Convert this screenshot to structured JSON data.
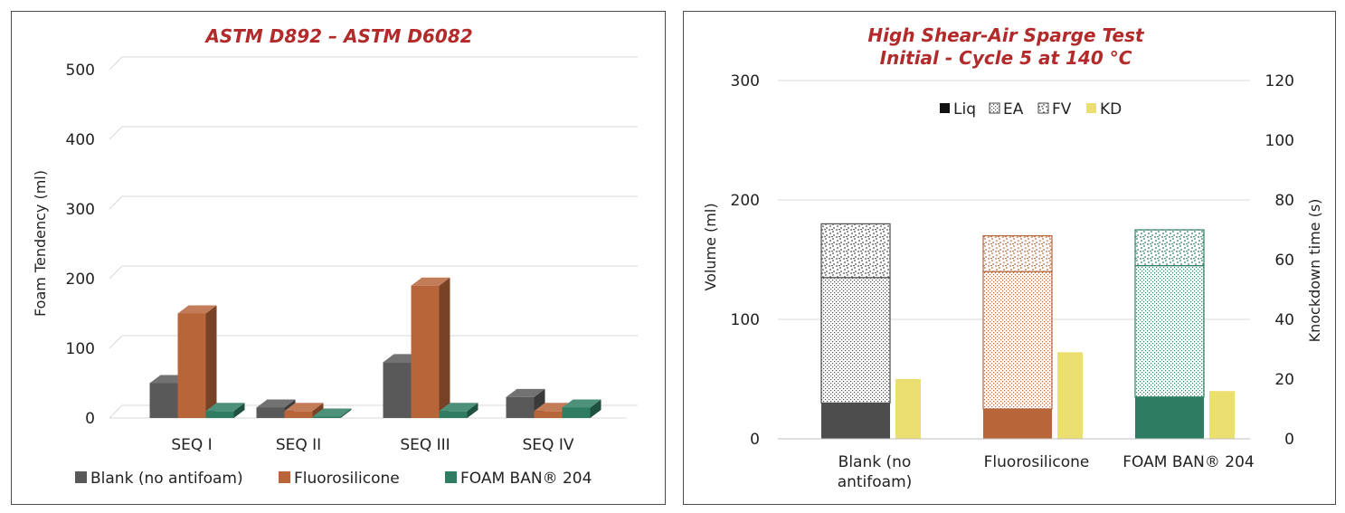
{
  "chart_data": [
    {
      "type": "bar",
      "style": "3d-clustered",
      "title": "ASTM D892 – ASTM D6082",
      "ylabel": "Foam Tendency (ml)",
      "xlabel": "",
      "ylim": [
        0,
        500
      ],
      "yticks": [
        "0",
        "100",
        "200",
        "300",
        "400",
        "500"
      ],
      "grid": true,
      "legend_position": "bottom",
      "categories": [
        "SEQ I",
        "SEQ II",
        "SEQ III",
        "SEQ IV"
      ],
      "series": [
        {
          "name": "Blank (no antifoam)",
          "color": "#595959",
          "values": [
            50,
            15,
            80,
            30
          ]
        },
        {
          "name": "Fluorosilicone",
          "color": "#b8653a",
          "values": [
            150,
            10,
            190,
            10
          ]
        },
        {
          "name": "FOAM BAN® 204",
          "color": "#2e7d63",
          "values": [
            10,
            0,
            10,
            15
          ]
        }
      ]
    },
    {
      "type": "bar",
      "style": "stacked-with-secondary-axis",
      "title": [
        "High Shear-Air Sparge Test",
        "Initial - Cycle 5 at 140 °C"
      ],
      "ylabel": "Volume (ml)",
      "y2label": "Knockdown time (s)",
      "ylim": [
        0,
        300
      ],
      "y2lim": [
        0,
        120
      ],
      "yticks": [
        "0",
        "100",
        "200",
        "300"
      ],
      "y2ticks": [
        "0",
        "20",
        "40",
        "60",
        "80",
        "100",
        "120"
      ],
      "grid": true,
      "legend_position": "top",
      "legend": [
        "Liq",
        "EA",
        "FV",
        "KD"
      ],
      "categories": [
        "Blank (no antifoam)",
        "Fluorosilicone",
        "FOAM BAN® 204"
      ],
      "category_lines": [
        [
          "Blank (no",
          "antifoam)"
        ],
        [
          "Fluorosilicone"
        ],
        [
          "FOAM BAN® 204"
        ]
      ],
      "category_colors": [
        "#4d4d4d",
        "#b8653a",
        "#2e7d63"
      ],
      "kd_color": "#ebdf6f",
      "series": [
        {
          "name": "Liq",
          "axis": "left",
          "values": [
            30,
            25,
            35
          ]
        },
        {
          "name": "EA",
          "axis": "left",
          "values": [
            105,
            115,
            110
          ]
        },
        {
          "name": "FV",
          "axis": "left",
          "values": [
            45,
            30,
            30
          ]
        },
        {
          "name": "KD",
          "axis": "right",
          "values": [
            20,
            29,
            16
          ]
        }
      ]
    }
  ]
}
